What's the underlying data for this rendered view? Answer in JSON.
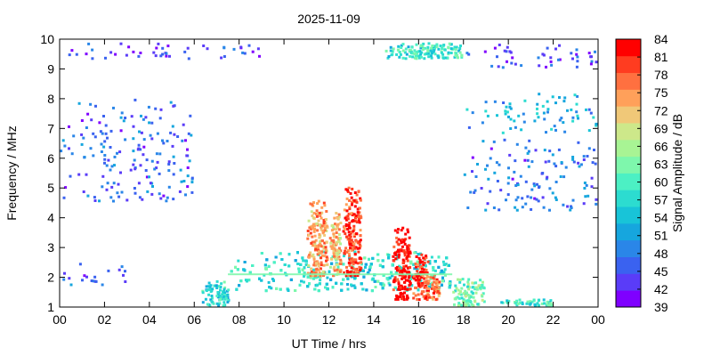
{
  "chart_data": {
    "type": "heatmap",
    "title": "2025-11-09",
    "xlabel": "UT Time / hrs",
    "ylabel": "Frequency / MHz",
    "colorbar_label": "Signal Amplitude / dB",
    "xlim": [
      0,
      24
    ],
    "ylim": [
      1,
      10
    ],
    "x_ticks": [
      "00",
      "02",
      "04",
      "06",
      "08",
      "10",
      "12",
      "14",
      "16",
      "18",
      "20",
      "22",
      "00"
    ],
    "y_ticks": [
      "1",
      "2",
      "3",
      "4",
      "5",
      "6",
      "7",
      "8",
      "9",
      "10"
    ],
    "colorbar_ticks": [
      "39",
      "42",
      "45",
      "48",
      "51",
      "54",
      "57",
      "60",
      "63",
      "66",
      "69",
      "72",
      "75",
      "78",
      "81",
      "84"
    ],
    "colorbar_range": [
      39,
      84
    ],
    "colormap": [
      "#7f00ff",
      "#5a3cf8",
      "#3a62f0",
      "#2a86e8",
      "#16a6de",
      "#18c4d8",
      "#2cdcd0",
      "#4cf0c4",
      "#7ef7ac",
      "#a8f494",
      "#cde88a",
      "#f0c878",
      "#ffa05a",
      "#ff7040",
      "#ff3c20",
      "#ff0000"
    ],
    "regions": [
      {
        "x": [
          7.6,
          17.5
        ],
        "y": [
          1.5,
          2.9
        ],
        "value": 57
      },
      {
        "x": [
          6.3,
          7.6
        ],
        "y": [
          1.0,
          1.9
        ],
        "value": 56
      },
      {
        "x": [
          17.5,
          19.0
        ],
        "y": [
          1.0,
          2.0
        ],
        "value": 62
      },
      {
        "x": [
          19.5,
          22.0
        ],
        "y": [
          1.0,
          1.3
        ],
        "value": 58
      },
      {
        "x": [
          11.0,
          12.0
        ],
        "y": [
          2.0,
          4.6
        ],
        "value": 74
      },
      {
        "x": [
          12.0,
          12.6
        ],
        "y": [
          2.0,
          4.2
        ],
        "value": 72
      },
      {
        "x": [
          12.6,
          13.5
        ],
        "y": [
          2.0,
          5.1
        ],
        "value": 79
      },
      {
        "x": [
          14.8,
          15.7
        ],
        "y": [
          1.2,
          3.7
        ],
        "value": 83
      },
      {
        "x": [
          15.7,
          16.5
        ],
        "y": [
          1.2,
          2.8
        ],
        "value": 80
      },
      {
        "x": [
          16.1,
          17.0
        ],
        "y": [
          1.2,
          2.2
        ],
        "value": 76
      },
      {
        "x": [
          0.0,
          9.0
        ],
        "y": [
          9.3,
          9.9
        ],
        "value": 44
      },
      {
        "x": [
          0.0,
          6.0
        ],
        "y": [
          4.5,
          8.0
        ],
        "value": 46
      },
      {
        "x": [
          0.0,
          3.0
        ],
        "y": [
          1.7,
          2.5
        ],
        "value": 47
      },
      {
        "x": [
          14.5,
          18.0
        ],
        "y": [
          9.3,
          9.9
        ],
        "value": 58
      },
      {
        "x": [
          18.0,
          24.0
        ],
        "y": [
          9.0,
          9.9
        ],
        "value": 44
      },
      {
        "x": [
          18.0,
          24.0
        ],
        "y": [
          4.2,
          6.7
        ],
        "value": 47
      },
      {
        "x": [
          18.0,
          24.0
        ],
        "y": [
          6.8,
          8.2
        ],
        "value": 52
      }
    ],
    "band_line": {
      "x": [
        7.5,
        17.5
      ],
      "y": 2.1,
      "value": 62
    },
    "grid": false,
    "legend": "colorbar-right"
  }
}
